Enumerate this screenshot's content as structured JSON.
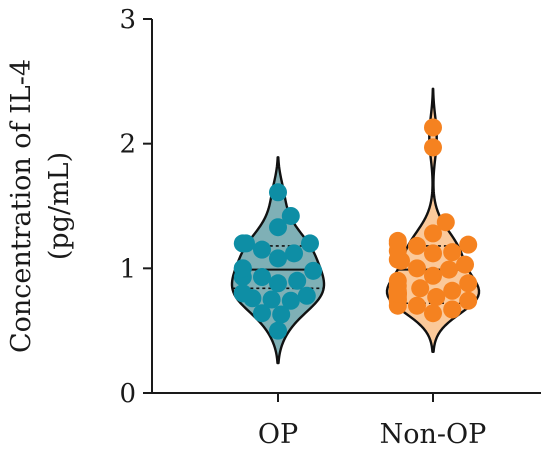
{
  "chart_data": {
    "type": "violin",
    "ylabel_line1": "Concentration of IL-4",
    "ylabel_line2": "(pg/mL)",
    "ylim": [
      0,
      3
    ],
    "yticks": [
      "0",
      "1",
      "2",
      "3"
    ],
    "ytick_values": [
      0,
      1,
      2,
      3
    ],
    "categories": [
      "OP",
      "Non-OP"
    ],
    "grid": false,
    "legend": "none",
    "series": [
      {
        "name": "OP",
        "fill": "#7fb0b6",
        "dot": "#0e8ea5",
        "quartiles": [
          0.84,
          0.99,
          1.18
        ],
        "range": [
          0.24,
          1.89
        ],
        "points": [
          1.61,
          1.42,
          1.33,
          1.2,
          1.2,
          1.2,
          1.15,
          1.12,
          1.08,
          1.0,
          1.0,
          0.98,
          0.93,
          0.93,
          0.9,
          0.88,
          0.8,
          0.8,
          0.78,
          0.76,
          0.75,
          0.74,
          0.64,
          0.63,
          0.5
        ]
      },
      {
        "name": "Non-OP",
        "fill": "#fbc99a",
        "dot": "#f58220",
        "quartiles": [
          0.72,
          0.99,
          1.18
        ],
        "range": [
          0.33,
          2.44
        ],
        "points": [
          2.13,
          1.97,
          1.37,
          1.28,
          1.22,
          1.2,
          1.19,
          1.18,
          1.14,
          1.13,
          1.12,
          1.07,
          1.06,
          1.03,
          1.0,
          0.99,
          0.94,
          0.9,
          0.88,
          0.86,
          0.84,
          0.82,
          0.82,
          0.8,
          0.8,
          0.8,
          0.8,
          0.79,
          0.78,
          0.77,
          0.76,
          0.75,
          0.74,
          0.74,
          0.7,
          0.7,
          0.67,
          0.64
        ]
      }
    ]
  }
}
